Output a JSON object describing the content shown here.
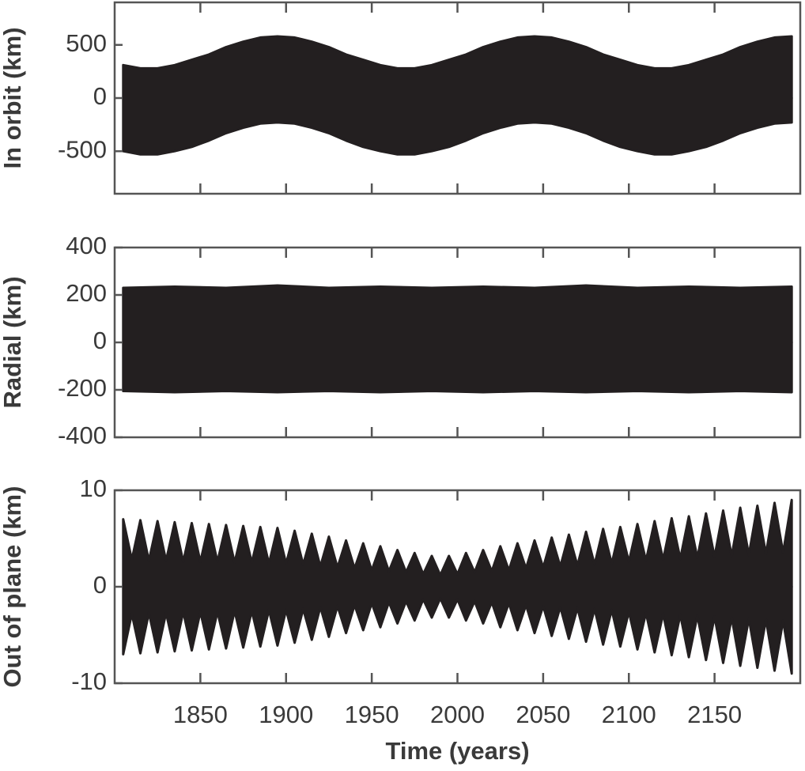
{
  "chart_data": [
    {
      "type": "area",
      "ylabel": "In orbit (km)",
      "x": [
        1805,
        1815,
        1825,
        1835,
        1845,
        1855,
        1865,
        1875,
        1885,
        1895,
        1905,
        1915,
        1925,
        1935,
        1945,
        1955,
        1965,
        1975,
        1985,
        1995,
        2005,
        2015,
        2025,
        2035,
        2045,
        2055,
        2065,
        2075,
        2085,
        2095,
        2105,
        2115,
        2125,
        2135,
        2145,
        2155,
        2165,
        2175,
        2185,
        2195
      ],
      "series": [
        {
          "color": "#231f20",
          "values": [
            310,
            280,
            280,
            310,
            360,
            410,
            480,
            530,
            570,
            580,
            570,
            530,
            480,
            410,
            360,
            310,
            280,
            280,
            310,
            360,
            410,
            480,
            530,
            570,
            580,
            570,
            530,
            480,
            410,
            360,
            310,
            280,
            280,
            310,
            360,
            410,
            480,
            530,
            570,
            580
          ]
        },
        {
          "color": "#231f20",
          "values": [
            -500,
            -530,
            -530,
            -500,
            -460,
            -400,
            -330,
            -280,
            -240,
            -230,
            -240,
            -280,
            -330,
            -400,
            -460,
            -500,
            -530,
            -530,
            -500,
            -460,
            -400,
            -330,
            -280,
            -240,
            -230,
            -240,
            -280,
            -330,
            -400,
            -460,
            -500,
            -530,
            -530,
            -500,
            -460,
            -400,
            -330,
            -280,
            -240,
            -230
          ]
        }
      ],
      "xlim": [
        1800,
        2200
      ],
      "xticks": [
        1850,
        1900,
        1950,
        2000,
        2050,
        2100,
        2150
      ],
      "ylim": [
        -900,
        900
      ],
      "yticks": [
        -500,
        0,
        500
      ]
    },
    {
      "type": "area",
      "ylabel": "Radial (km)",
      "x": [
        1805,
        1835,
        1865,
        1895,
        1925,
        1955,
        1985,
        2015,
        2045,
        2075,
        2105,
        2135,
        2165,
        2195
      ],
      "series": [
        {
          "color": "#231f20",
          "values": [
            230,
            235,
            230,
            240,
            230,
            235,
            230,
            235,
            230,
            240,
            230,
            235,
            230,
            235
          ]
        },
        {
          "color": "#231f20",
          "values": [
            -205,
            -210,
            -205,
            -210,
            -205,
            -210,
            -205,
            -210,
            -205,
            -210,
            -205,
            -210,
            -205,
            -210
          ]
        }
      ],
      "xlim": [
        1800,
        2200
      ],
      "xticks": [
        1850,
        1900,
        1950,
        2000,
        2050,
        2100,
        2150
      ],
      "ylim": [
        -400,
        400
      ],
      "yticks": [
        -400,
        -200,
        0,
        200,
        400
      ]
    },
    {
      "type": "area",
      "ylabel": "Out of plane (km)",
      "xlabel": "Time (years)",
      "x": [
        1805,
        1810,
        1815,
        1820,
        1825,
        1830,
        1835,
        1840,
        1845,
        1850,
        1855,
        1860,
        1865,
        1870,
        1875,
        1880,
        1885,
        1890,
        1895,
        1900,
        1905,
        1910,
        1915,
        1920,
        1925,
        1930,
        1935,
        1940,
        1945,
        1950,
        1955,
        1960,
        1965,
        1970,
        1975,
        1980,
        1985,
        1990,
        1995,
        2000,
        2005,
        2010,
        2015,
        2020,
        2025,
        2030,
        2035,
        2040,
        2045,
        2050,
        2055,
        2060,
        2065,
        2070,
        2075,
        2080,
        2085,
        2090,
        2095,
        2100,
        2105,
        2110,
        2115,
        2120,
        2125,
        2130,
        2135,
        2140,
        2145,
        2150,
        2155,
        2160,
        2165,
        2170,
        2175,
        2180,
        2185,
        2190,
        2195
      ],
      "series": [
        {
          "color": "#231f20",
          "values": [
            7.0,
            2.8,
            6.9,
            2.7,
            6.8,
            2.7,
            6.7,
            2.6,
            6.6,
            2.6,
            6.5,
            2.6,
            6.4,
            2.5,
            6.3,
            2.5,
            6.2,
            2.4,
            6.1,
            2.4,
            5.8,
            2.3,
            5.5,
            2.1,
            5.2,
            2.0,
            4.8,
            1.9,
            4.5,
            1.7,
            4.2,
            1.6,
            3.8,
            1.5,
            3.5,
            1.3,
            3.2,
            1.2,
            3.2,
            1.3,
            3.5,
            1.5,
            3.8,
            1.6,
            4.2,
            1.7,
            4.5,
            1.9,
            4.8,
            2.0,
            5.1,
            2.1,
            5.4,
            2.2,
            5.7,
            2.3,
            6.0,
            2.4,
            6.2,
            2.6,
            6.5,
            2.7,
            6.8,
            2.8,
            7.1,
            2.9,
            7.3,
            3.0,
            7.6,
            3.1,
            7.9,
            3.2,
            8.2,
            3.3,
            8.4,
            3.4,
            8.7,
            3.5,
            9.0
          ]
        },
        {
          "color": "#231f20",
          "values": [
            -7.0,
            -2.8,
            -6.9,
            -2.7,
            -6.8,
            -2.7,
            -6.7,
            -2.6,
            -6.6,
            -2.6,
            -6.5,
            -2.6,
            -6.4,
            -2.5,
            -6.3,
            -2.5,
            -6.2,
            -2.4,
            -6.1,
            -2.4,
            -5.8,
            -2.3,
            -5.5,
            -2.1,
            -5.2,
            -2.0,
            -4.8,
            -1.9,
            -4.5,
            -1.7,
            -4.2,
            -1.6,
            -3.8,
            -1.5,
            -3.5,
            -1.3,
            -3.2,
            -1.2,
            -3.2,
            -1.3,
            -3.5,
            -1.5,
            -3.8,
            -1.6,
            -4.2,
            -1.7,
            -4.5,
            -1.9,
            -4.8,
            -2.0,
            -5.1,
            -2.1,
            -5.4,
            -2.2,
            -5.7,
            -2.3,
            -6.0,
            -2.4,
            -6.2,
            -2.6,
            -6.5,
            -2.7,
            -6.8,
            -2.8,
            -7.1,
            -2.9,
            -7.3,
            -3.0,
            -7.6,
            -3.1,
            -7.9,
            -3.2,
            -8.2,
            -3.3,
            -8.4,
            -3.4,
            -8.7,
            -3.5,
            -9.0
          ]
        }
      ],
      "xlim": [
        1800,
        2200
      ],
      "xticks": [
        1850,
        1900,
        1950,
        2000,
        2050,
        2100,
        2150
      ],
      "ylim": [
        -10,
        10
      ],
      "yticks": [
        -10,
        0,
        10
      ]
    }
  ]
}
